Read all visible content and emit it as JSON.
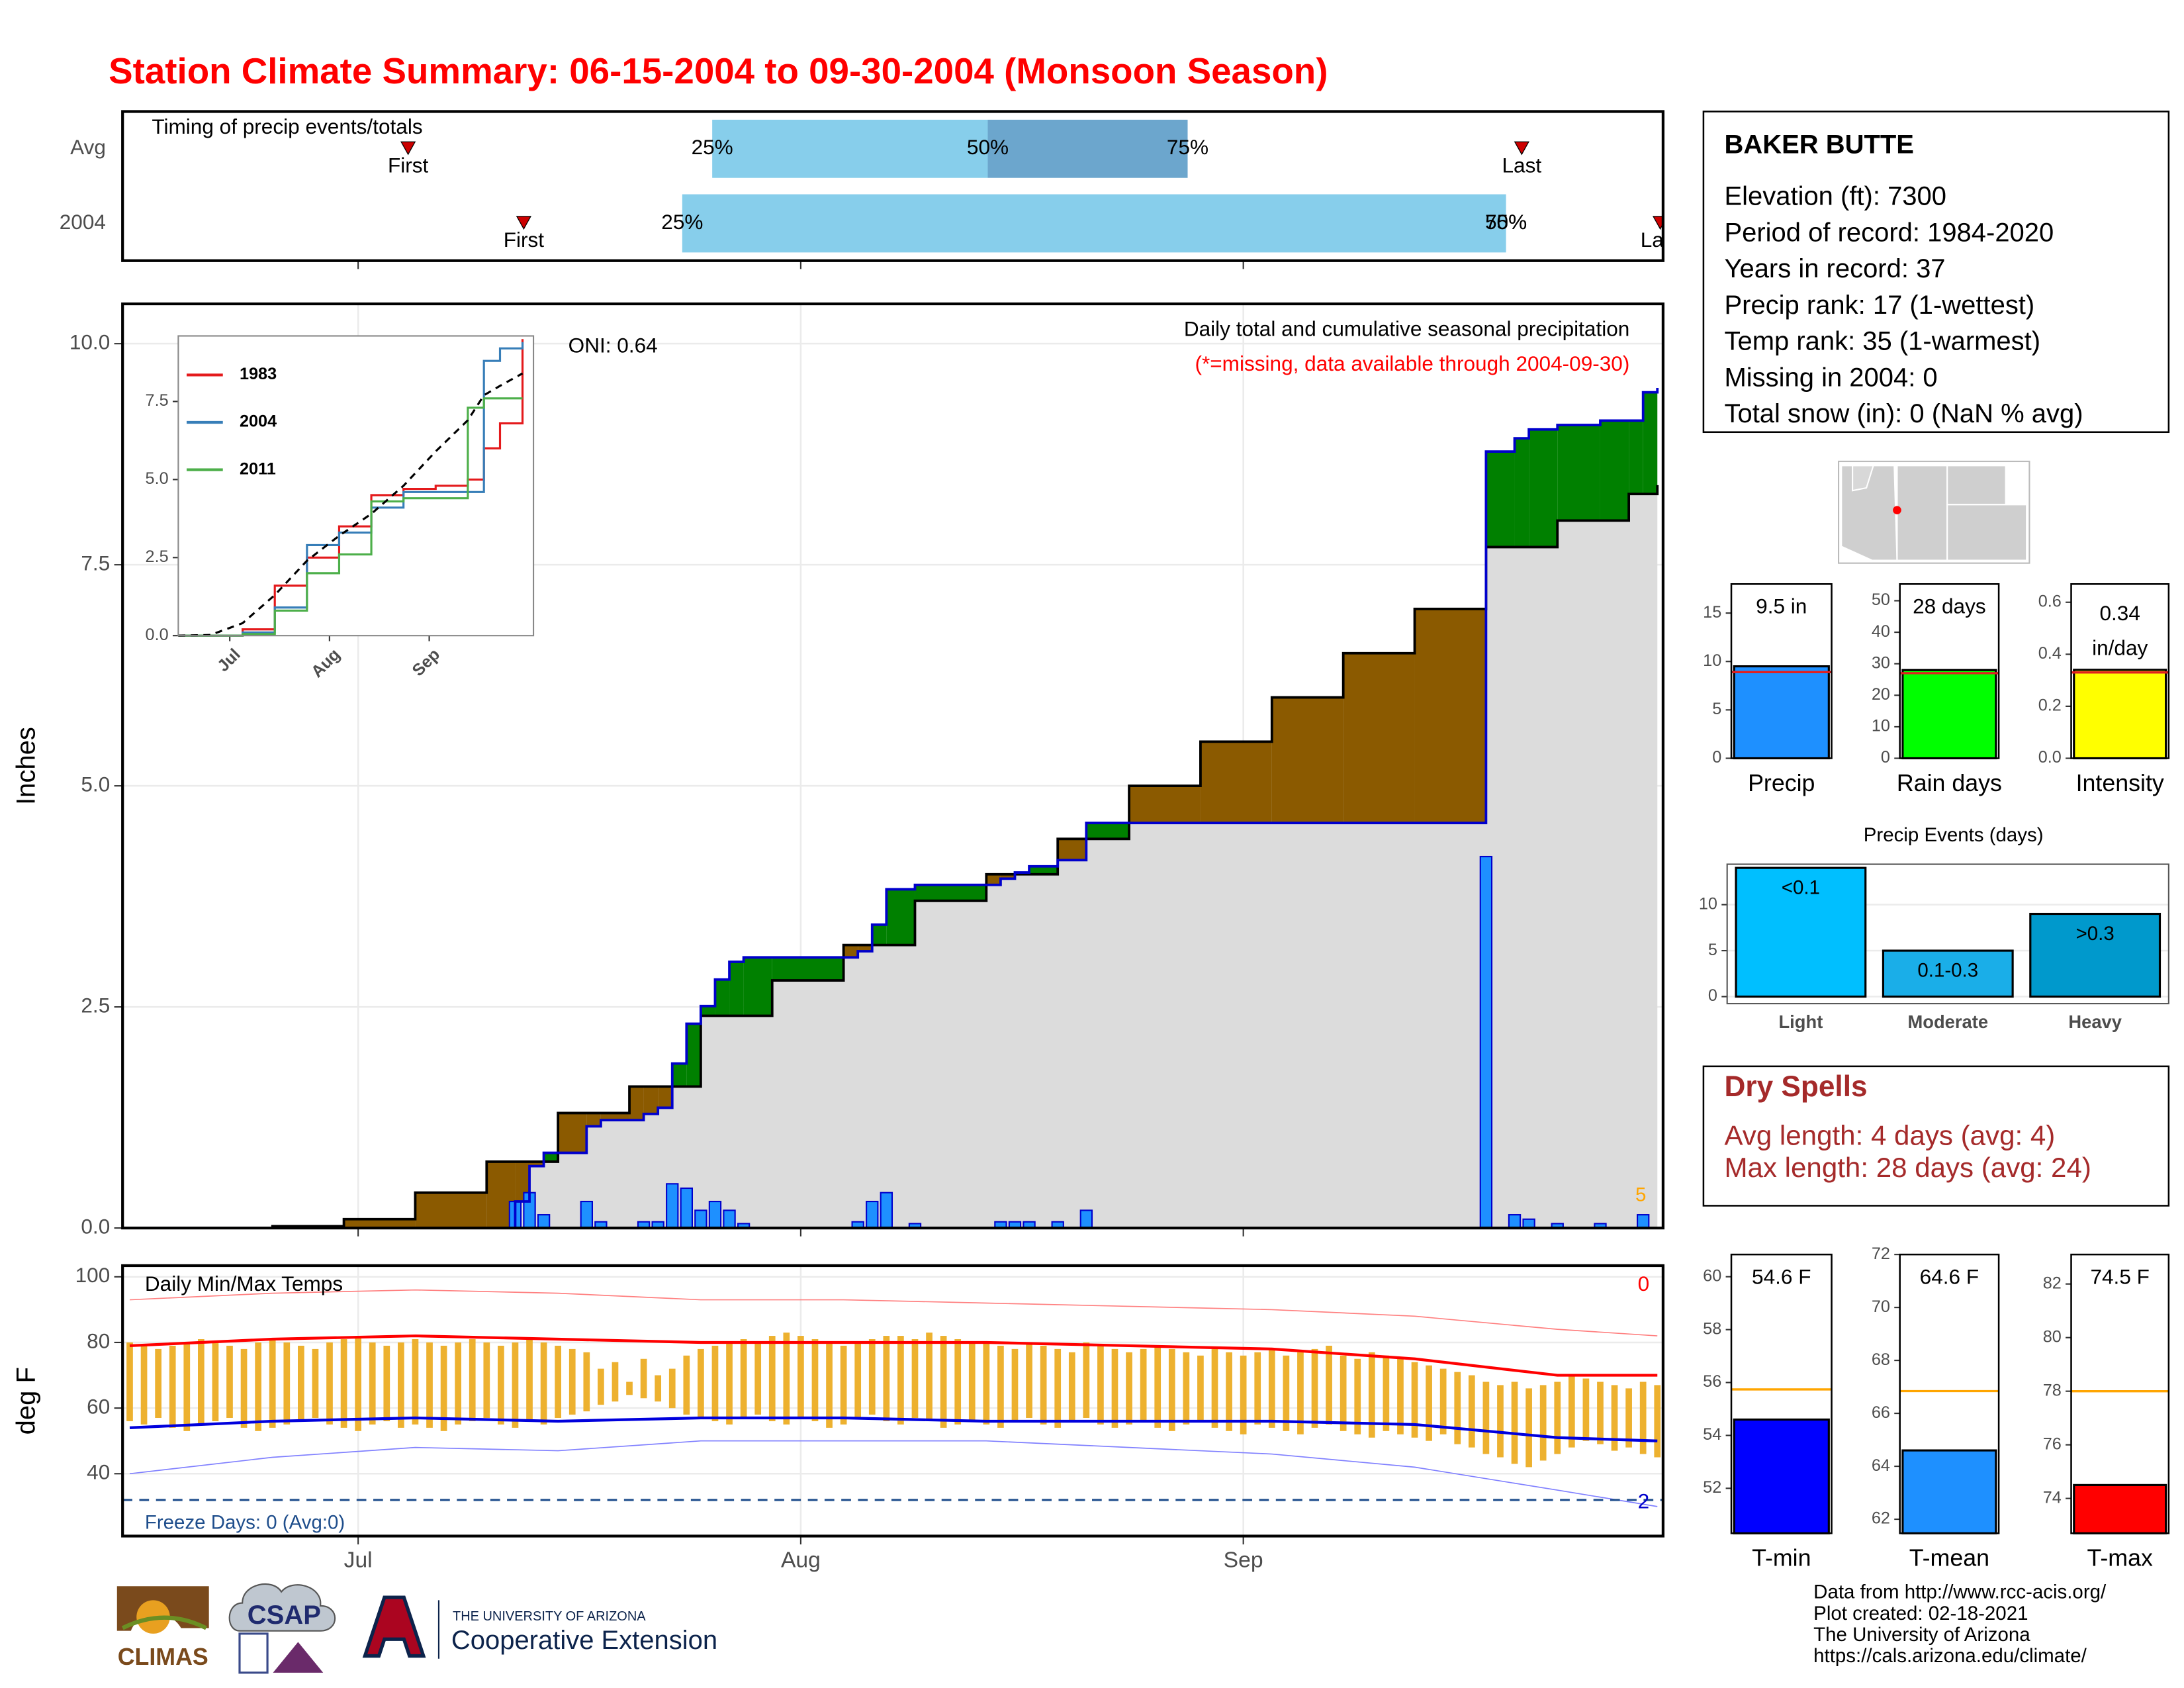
{
  "title": "Station Climate Summary: 06-15-2004 to 09-30-2004 (Monsoon Season)",
  "station": {
    "name": "BAKER BUTTE",
    "lines": [
      "Elevation (ft): 7300",
      "Period of record: 1984-2020",
      "Years in record: 37",
      "Precip rank: 17 (1-wettest)",
      "Temp rank: 35 (1-warmest)",
      "Missing in 2004: 0",
      "Total snow (in): 0 (NaN % avg)"
    ]
  },
  "dry_spells": {
    "title": "Dry Spells",
    "lines": [
      "Avg length: 4 days (avg: 4)",
      "Max length: 28 days (avg: 24)"
    ]
  },
  "credits": [
    "Data from http://www.rcc-acis.org/",
    "Plot created: 02-18-2021",
    "The University of Arizona",
    "https://cals.arizona.edu/climate/"
  ],
  "logos": {
    "climas": "CLIMAS",
    "csap": "CSAP",
    "university": "THE UNIVERSITY OF ARIZONA",
    "extension": "Cooperative Extension"
  },
  "time_axis": {
    "xlim": [
      -0.5,
      107.4
    ],
    "xticks": [
      {
        "value": 16,
        "label": "Jul"
      },
      {
        "value": 47,
        "label": "Aug"
      },
      {
        "value": 78,
        "label": "Sep"
      }
    ]
  },
  "chart_data": [
    {
      "type": "timeline",
      "title": "Timing of precip events/totals",
      "colors": [
        "#87CEEB",
        "#6CA6CD"
      ],
      "marker_color": "#cc0000",
      "marker_labels": {
        "first": "First",
        "last": "Last",
        "p25": "25%",
        "p50": "50%",
        "p75": "75%"
      },
      "rows": [
        {
          "name": "Avg",
          "first": 19.5,
          "p25": 40.8,
          "p50": 60.1,
          "p75": 74.1,
          "last": 97.5
        },
        {
          "name": "2004",
          "first": 27.6,
          "p25": 38.7,
          "p50": 96.4,
          "p75": 96.4,
          "last": 107.2
        }
      ]
    },
    {
      "type": "cumulative",
      "title": "Daily total and cumulative seasonal precipitation",
      "subtitle": "(*=missing, data available through 2004-09-30)",
      "note": "ONI: 0.64",
      "corner_label": "5",
      "ylabel": "Inches",
      "ylim": [
        0,
        10.45
      ],
      "yticks": [
        {
          "value": 0,
          "label": "0.0"
        },
        {
          "value": 2.5,
          "label": "2.5"
        },
        {
          "value": 5,
          "label": "5.0"
        },
        {
          "value": 7.5,
          "label": "7.5"
        },
        {
          "value": 10,
          "label": "10.0"
        }
      ],
      "grid": true,
      "above_color": "#008000",
      "below_color": "#8B5A00",
      "base_fill": "#dcdcdc",
      "series": [
        {
          "color": "#000000",
          "x": [
            0,
            5,
            10,
            15,
            20,
            25,
            30,
            35,
            40,
            45,
            50,
            55,
            60,
            65,
            70,
            75,
            80,
            85,
            90,
            95,
            100,
            105,
            107
          ],
          "values": [
            0,
            0,
            0.02,
            0.1,
            0.4,
            0.75,
            1.3,
            1.6,
            2.4,
            2.8,
            3.2,
            3.7,
            4.0,
            4.4,
            5.0,
            5.5,
            6.0,
            6.5,
            7.0,
            7.7,
            8.0,
            8.3,
            8.4
          ]
        },
        {
          "color": "#0000cc",
          "x": [
            0,
            27,
            28,
            29,
            32,
            33,
            36,
            37,
            38,
            39,
            40,
            41,
            42,
            43,
            51,
            52,
            53,
            55,
            61,
            62,
            63,
            65,
            67,
            95,
            97,
            98,
            100,
            103,
            106,
            107
          ],
          "values": [
            0,
            0.3,
            0.7,
            0.85,
            1.15,
            1.22,
            1.29,
            1.36,
            1.86,
            2.31,
            2.51,
            2.81,
            3.01,
            3.06,
            3.13,
            3.43,
            3.83,
            3.88,
            3.95,
            4.02,
            4.09,
            4.16,
            4.58,
            8.78,
            8.93,
            9.03,
            9.08,
            9.13,
            9.45,
            9.5
          ]
        }
      ],
      "daily": {
        "color": "#1E90FF",
        "x": [
          27,
          28,
          29,
          32,
          33,
          36,
          37,
          38,
          39,
          40,
          41,
          42,
          43,
          51,
          52,
          53,
          55,
          61,
          62,
          63,
          65,
          67,
          95,
          97,
          98,
          100,
          103,
          106
        ],
        "values": [
          0.3,
          0.4,
          0.15,
          0.3,
          0.07,
          0.07,
          0.07,
          0.5,
          0.45,
          0.2,
          0.3,
          0.2,
          0.05,
          0.07,
          0.3,
          0.4,
          0.05,
          0.07,
          0.07,
          0.07,
          0.07,
          0.2,
          4.2,
          0.15,
          0.1,
          0.05,
          0.05,
          0.15
        ]
      }
    },
    {
      "type": "line",
      "xlim": [
        0,
        110.4
      ],
      "ylim": [
        0,
        9.6
      ],
      "yticks": [
        {
          "value": 0,
          "label": "0.0"
        },
        {
          "value": 2.5,
          "label": "2.5"
        },
        {
          "value": 5,
          "label": "5.0"
        },
        {
          "value": 7.5,
          "label": "7.5"
        }
      ],
      "x": [
        0,
        10,
        20,
        30,
        40,
        50,
        60,
        70,
        80,
        90,
        95,
        100,
        107
      ],
      "series": [
        {
          "name": "1983",
          "color": "#e41a1c",
          "values": [
            0,
            0,
            0.2,
            1.6,
            2.5,
            3.5,
            4.5,
            4.7,
            4.8,
            5.0,
            6.0,
            6.8,
            9.5
          ]
        },
        {
          "name": "2004",
          "color": "#377eb8",
          "values": [
            0,
            0,
            0.1,
            0.9,
            2.9,
            3.3,
            4.1,
            4.6,
            4.6,
            4.6,
            8.8,
            9.2,
            9.4
          ]
        },
        {
          "name": "2011",
          "color": "#4daf4a",
          "values": [
            0,
            0,
            0.05,
            0.8,
            2.0,
            2.6,
            4.3,
            4.4,
            4.4,
            7.3,
            7.6,
            7.6,
            7.6
          ]
        },
        {
          "color": "#000000",
          "dash": true,
          "values": [
            0,
            0.02,
            0.4,
            1.3,
            2.4,
            3.2,
            3.9,
            4.8,
            5.9,
            6.9,
            7.7,
            8.0,
            8.4
          ]
        }
      ]
    },
    {
      "type": "temperature",
      "title": "Daily Min/Max Temps",
      "ylabel": "deg F",
      "ylim": [
        21,
        103.4
      ],
      "yticks": [
        40,
        60,
        80,
        100
      ],
      "grid": true,
      "bar_color": "#EDB12F",
      "freeze_line": 32,
      "freeze_color": "#1f4e8c",
      "freeze_label": "Freeze Days: 0 (Avg:0)",
      "top_label": {
        "text": "0",
        "color": "#ff0000"
      },
      "bottom_label": {
        "text": "2",
        "color": "#0000cc"
      },
      "days": [
        0,
        1,
        2,
        3,
        4,
        5,
        6,
        7,
        8,
        9,
        10,
        11,
        12,
        13,
        14,
        15,
        16,
        17,
        18,
        19,
        20,
        21,
        22,
        23,
        24,
        25,
        26,
        27,
        28,
        29,
        30,
        31,
        32,
        33,
        34,
        35,
        36,
        37,
        38,
        39,
        40,
        41,
        42,
        43,
        44,
        45,
        46,
        47,
        48,
        49,
        50,
        51,
        52,
        53,
        54,
        55,
        56,
        57,
        58,
        59,
        60,
        61,
        62,
        63,
        64,
        65,
        66,
        67,
        68,
        69,
        70,
        71,
        72,
        73,
        74,
        75,
        76,
        77,
        78,
        79,
        80,
        81,
        82,
        83,
        84,
        85,
        86,
        87,
        88,
        89,
        90,
        91,
        92,
        93,
        94,
        95,
        96,
        97,
        98,
        99,
        100,
        101,
        102,
        103,
        104,
        105,
        106,
        107
      ],
      "daily_max": [
        80,
        79,
        78,
        79,
        80,
        81,
        80,
        79,
        78,
        80,
        81,
        80,
        79,
        78,
        80,
        81,
        82,
        80,
        79,
        80,
        81,
        80,
        79,
        80,
        81,
        80,
        79,
        80,
        81,
        80,
        79,
        78,
        77,
        72,
        74,
        68,
        75,
        70,
        72,
        76,
        78,
        79,
        80,
        81,
        80,
        82,
        83,
        82,
        81,
        80,
        79,
        80,
        81,
        82,
        82,
        81,
        83,
        82,
        81,
        80,
        80,
        79,
        78,
        80,
        79,
        78,
        77,
        80,
        79,
        78,
        77,
        78,
        79,
        78,
        77,
        76,
        78,
        77,
        76,
        77,
        78,
        76,
        77,
        78,
        79,
        76,
        75,
        77,
        76,
        75,
        74,
        73,
        72,
        71,
        70,
        68,
        67,
        68,
        66,
        67,
        68,
        70,
        69,
        68,
        67,
        66,
        68,
        67
      ],
      "daily_min": [
        56,
        55,
        57,
        54,
        53,
        55,
        56,
        57,
        54,
        53,
        54,
        55,
        56,
        57,
        55,
        54,
        53,
        55,
        56,
        54,
        55,
        54,
        53,
        55,
        56,
        57,
        55,
        54,
        56,
        55,
        57,
        58,
        59,
        61,
        62,
        64,
        63,
        62,
        60,
        58,
        57,
        56,
        55,
        57,
        58,
        56,
        55,
        57,
        56,
        54,
        55,
        57,
        58,
        56,
        55,
        57,
        56,
        54,
        55,
        56,
        55,
        54,
        56,
        57,
        55,
        54,
        56,
        57,
        55,
        54,
        55,
        56,
        54,
        53,
        55,
        56,
        54,
        53,
        52,
        55,
        54,
        53,
        52,
        54,
        55,
        53,
        52,
        51,
        53,
        52,
        51,
        50,
        52,
        49,
        48,
        46,
        45,
        43,
        42,
        44,
        46,
        48,
        50,
        49,
        47,
        48,
        46,
        45
      ],
      "x": [
        0,
        10,
        20,
        30,
        40,
        50,
        60,
        70,
        80,
        90,
        100,
        107
      ],
      "series": [
        {
          "color": "#ff8080",
          "width": 0.8,
          "values": [
            93,
            95,
            96,
            95,
            93,
            93,
            92,
            91,
            90,
            88,
            84,
            82
          ]
        },
        {
          "color": "#8080ff",
          "width": 0.8,
          "values": [
            40,
            45,
            48,
            47,
            50,
            50,
            50,
            48,
            46,
            42,
            35,
            30
          ]
        },
        {
          "color": "#ff0000",
          "width": 2,
          "values": [
            79,
            81,
            82,
            81,
            80,
            80,
            80,
            79,
            78,
            75,
            70,
            70
          ]
        },
        {
          "color": "#0000dd",
          "width": 2,
          "values": [
            54,
            56,
            57,
            56,
            57,
            57,
            56,
            56,
            56,
            55,
            51,
            50
          ]
        }
      ]
    },
    {
      "type": "gauge",
      "xlabel": "Precip",
      "value": 9.5,
      "value_label": "9.5 in",
      "avg": 8.9,
      "color": "#1E90FF",
      "avg_color": "#e02020",
      "ylim": [
        0,
        18
      ],
      "yticks": [
        0,
        5,
        10,
        15
      ]
    },
    {
      "type": "gauge",
      "xlabel": "Rain days",
      "value": 28,
      "value_label": "28 days",
      "avg": 27,
      "color": "#00ff00",
      "avg_color": "#e02020",
      "ylim": [
        0,
        55.3
      ],
      "yticks": [
        0,
        10,
        20,
        30,
        40,
        50
      ]
    },
    {
      "type": "gauge",
      "xlabel": "Intensity",
      "value": 0.34,
      "value_label": "0.34",
      "unit": "in/day",
      "avg": 0.33,
      "color": "#ffff00",
      "avg_color": "#e02020",
      "ylim": [
        0,
        0.67
      ],
      "yticks": [
        {
          "value": 0,
          "label": "0.0"
        },
        {
          "value": 0.2,
          "label": "0.2"
        },
        {
          "value": 0.4,
          "label": "0.4"
        },
        {
          "value": 0.6,
          "label": "0.6"
        }
      ]
    },
    {
      "type": "bar",
      "title": "Precip Events (days)",
      "categories": [
        "Light",
        "Moderate",
        "Heavy"
      ],
      "values": [
        14,
        5,
        9
      ],
      "thresholds": [
        "<0.1",
        "0.1-0.3",
        ">0.3"
      ],
      "colors": [
        "#00BFFF",
        "#1AAEE8",
        "#0099CC"
      ],
      "ylim": [
        -0.76,
        14.4
      ],
      "yticks": [
        0,
        5,
        10
      ]
    },
    {
      "type": "gauge",
      "xlabel": "T-min",
      "value": 54.6,
      "value_label": "54.6 F",
      "avg": 55.74,
      "color": "#0000ff",
      "avg_color": "#FFA500",
      "ylim": [
        50.3,
        60.84
      ],
      "yticks": [
        52,
        54,
        56,
        58,
        60
      ]
    },
    {
      "type": "gauge",
      "xlabel": "T-mean",
      "value": 64.6,
      "value_label": "64.6 F",
      "avg": 66.84,
      "color": "#1E90FF",
      "avg_color": "#FFA500",
      "ylim": [
        61.47,
        72
      ],
      "yticks": [
        62,
        64,
        66,
        68,
        70,
        72
      ]
    },
    {
      "type": "gauge",
      "xlabel": "T-max",
      "value": 74.5,
      "value_label": "74.5 F",
      "avg": 78,
      "color": "#ff0000",
      "avg_color": "#FFA500",
      "ylim": [
        72.7,
        83.1
      ],
      "yticks": [
        74,
        76,
        78,
        80,
        82
      ]
    }
  ]
}
